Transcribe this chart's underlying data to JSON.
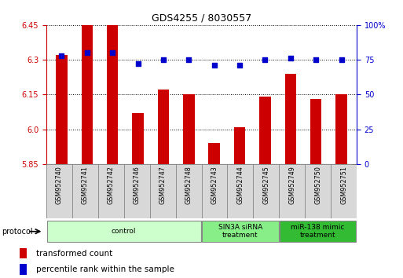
{
  "title": "GDS4255 / 8030557",
  "samples": [
    "GSM952740",
    "GSM952741",
    "GSM952742",
    "GSM952746",
    "GSM952747",
    "GSM952748",
    "GSM952743",
    "GSM952744",
    "GSM952745",
    "GSM952749",
    "GSM952750",
    "GSM952751"
  ],
  "transformed_counts": [
    6.32,
    6.45,
    6.45,
    6.07,
    6.17,
    6.15,
    5.94,
    6.01,
    6.14,
    6.24,
    6.13,
    6.15
  ],
  "percentile_ranks": [
    78,
    80,
    80,
    72,
    75,
    75,
    71,
    71,
    75,
    76,
    75,
    75
  ],
  "ylim_left": [
    5.85,
    6.45
  ],
  "ylim_right": [
    0,
    100
  ],
  "yticks_left": [
    5.85,
    6.0,
    6.15,
    6.3,
    6.45
  ],
  "yticks_right": [
    0,
    25,
    50,
    75,
    100
  ],
  "bar_color": "#cc0000",
  "dot_color": "#0000cc",
  "groups": [
    {
      "label": "control",
      "start": 0,
      "end": 6,
      "color": "#ccffcc"
    },
    {
      "label": "SIN3A siRNA\ntreatment",
      "start": 6,
      "end": 9,
      "color": "#88ee88"
    },
    {
      "label": "miR-138 mimic\ntreatment",
      "start": 9,
      "end": 12,
      "color": "#33bb33"
    }
  ],
  "xlabel_color": "#cc0000",
  "dot_color_hex": "#0000cc",
  "grid_color": "#000000",
  "bg_color": "#ffffff",
  "tick_fontsize": 7,
  "title_fontsize": 9
}
